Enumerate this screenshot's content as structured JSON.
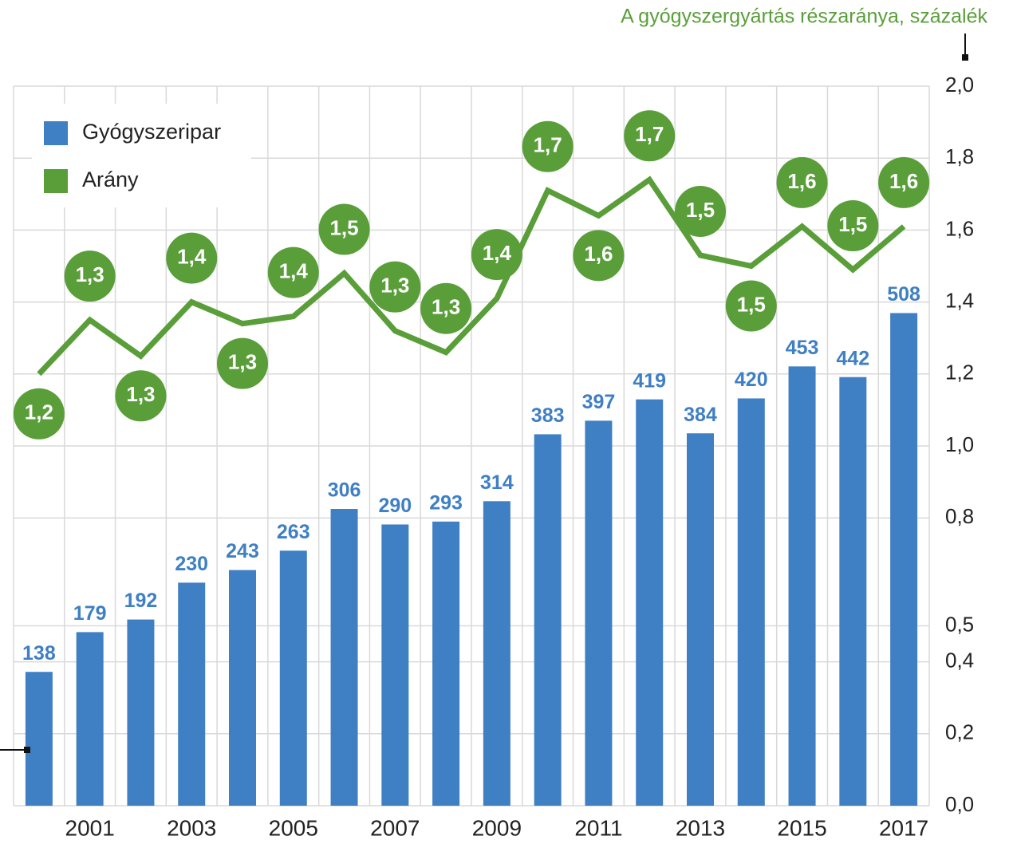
{
  "chart_data": {
    "type": "bar-line",
    "y2_label": "A gyógyszergyártás részaránya, százalék",
    "categories": [
      null,
      "2001",
      null,
      "2003",
      null,
      "2005",
      null,
      "2007",
      null,
      "2009",
      null,
      "2011",
      null,
      "2013",
      null,
      "2015",
      null,
      "2017"
    ],
    "series": [
      {
        "name": "Gyógyszeripar",
        "color": "#3f7fc4",
        "type": "bar",
        "values": [
          138,
          179,
          192,
          230,
          243,
          263,
          306,
          290,
          293,
          314,
          383,
          397,
          419,
          384,
          420,
          453,
          442,
          508
        ]
      },
      {
        "name": "Arány",
        "color": "#5a9e3a",
        "type": "line",
        "axis": "y2",
        "values": [
          1.2,
          1.35,
          1.25,
          1.4,
          1.34,
          1.36,
          1.48,
          1.32,
          1.26,
          1.41,
          1.71,
          1.64,
          1.74,
          1.53,
          1.5,
          1.61,
          1.49,
          1.61
        ],
        "value_labels": [
          "1,2",
          "1,3",
          "1,3",
          "1,4",
          "1,3",
          "1,4",
          "1,5",
          "1,3",
          "1,3",
          "1,4",
          "1,7",
          "1,6",
          "1,7",
          "1,5",
          "1,5",
          "1,6",
          "1,5",
          "1,6"
        ]
      }
    ],
    "ylim": [
      0,
      742
    ],
    "y2lim": [
      0,
      2
    ],
    "y2ticks": [
      {
        "value": 0,
        "label": "0,0"
      },
      {
        "value": 0.2,
        "label": "0,2"
      },
      {
        "value": 0.4,
        "label": "0,4"
      },
      {
        "value": 0.5,
        "label": "0,5"
      },
      {
        "value": 0.8,
        "label": "0,8"
      },
      {
        "value": 1,
        "label": "1,0"
      },
      {
        "value": 1.2,
        "label": "1,2"
      },
      {
        "value": 1.4,
        "label": "1,4"
      },
      {
        "value": 1.6,
        "label": "1,6"
      },
      {
        "value": 1.8,
        "label": "1,8"
      },
      {
        "value": 2,
        "label": "2,0"
      }
    ],
    "grid": true,
    "legend": "upper left"
  }
}
